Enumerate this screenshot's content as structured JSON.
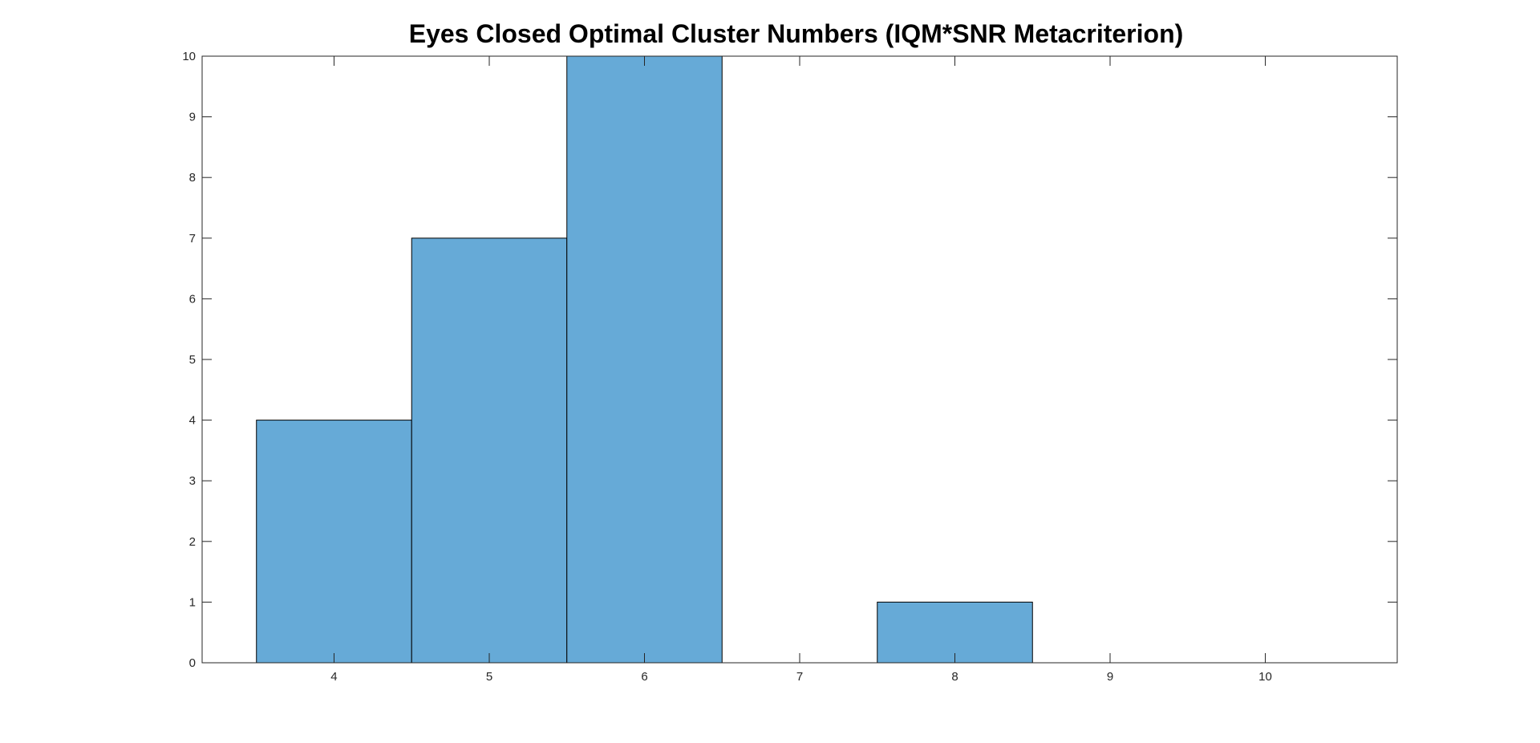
{
  "chart_data": {
    "type": "bar",
    "title": "Eyes Closed Optimal Cluster Numbers (IQM*SNR Metacriterion)",
    "xlabel": "",
    "ylabel": "",
    "categories": [
      4,
      5,
      6,
      7,
      8,
      9,
      10
    ],
    "values": [
      4,
      7,
      10,
      0,
      1,
      0,
      0
    ],
    "bin_width": 1,
    "xlim": [
      3.15,
      10.85
    ],
    "ylim": [
      0,
      10
    ],
    "xticks": [
      4,
      5,
      6,
      7,
      8,
      9,
      10
    ],
    "yticks": [
      0,
      1,
      2,
      3,
      4,
      5,
      6,
      7,
      8,
      9,
      10
    ],
    "grid": false,
    "legend": "none",
    "colors": {
      "bar_fill": "#66AAD7",
      "bar_edge": "#000000",
      "axis": "#262626"
    }
  }
}
